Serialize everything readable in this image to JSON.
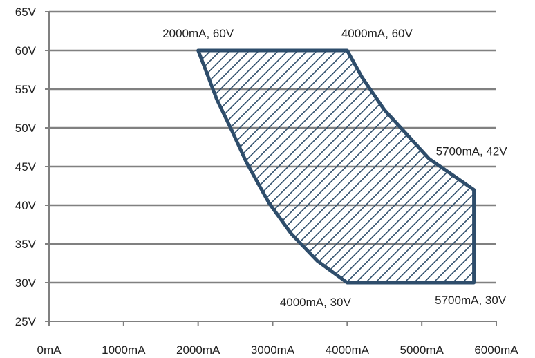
{
  "chart_data": {
    "type": "area",
    "xlim": [
      0,
      6000
    ],
    "ylim": [
      25,
      65
    ],
    "grid": "horizontal",
    "x_ticks": [
      {
        "value": 0,
        "label": "0mA"
      },
      {
        "value": 1000,
        "label": "1000mA"
      },
      {
        "value": 2000,
        "label": "2000mA"
      },
      {
        "value": 3000,
        "label": "3000mA"
      },
      {
        "value": 4000,
        "label": "4000mA"
      },
      {
        "value": 5000,
        "label": "5000mA"
      },
      {
        "value": 6000,
        "label": "6000mA"
      }
    ],
    "y_ticks": [
      {
        "value": 25,
        "label": "25V"
      },
      {
        "value": 30,
        "label": "30V"
      },
      {
        "value": 35,
        "label": "35V"
      },
      {
        "value": 40,
        "label": "40V"
      },
      {
        "value": 45,
        "label": "45V"
      },
      {
        "value": 50,
        "label": "50V"
      },
      {
        "value": 55,
        "label": "55V"
      },
      {
        "value": 60,
        "label": "60V"
      },
      {
        "value": 65,
        "label": "65V"
      }
    ],
    "region": {
      "fill": "hatched",
      "color": "#2e4d6b",
      "points": [
        [
          2000,
          60
        ],
        [
          4000,
          60
        ],
        [
          4200,
          56.5
        ],
        [
          4500,
          52.3
        ],
        [
          5100,
          46
        ],
        [
          5700,
          42
        ],
        [
          5700,
          30
        ],
        [
          4000,
          30
        ],
        [
          3600,
          32.8
        ],
        [
          3250,
          36.3
        ],
        [
          2950,
          40.3
        ],
        [
          2650,
          45.5
        ],
        [
          2450,
          49.7
        ],
        [
          2250,
          53.7
        ],
        [
          2000,
          60
        ]
      ]
    },
    "annotations": [
      {
        "label": "2000mA, 60V",
        "x": 2000,
        "y": 60
      },
      {
        "label": "4000mA, 60V",
        "x": 4000,
        "y": 60
      },
      {
        "label": "5700mA, 42V",
        "x": 5700,
        "y": 42
      },
      {
        "label": "4000mA, 30V",
        "x": 4000,
        "y": 30
      },
      {
        "label": "5700mA, 30V",
        "x": 5700,
        "y": 30
      }
    ]
  },
  "colors": {
    "grid": "#808080",
    "axis": "#808080",
    "region": "#2e4d6b"
  }
}
